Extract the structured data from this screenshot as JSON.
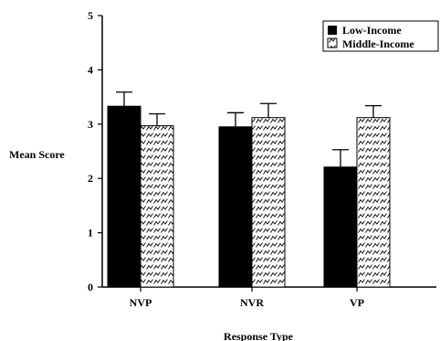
{
  "chart_data": {
    "type": "bar",
    "xlabel": "Response Type",
    "ylabel": "Mean Score",
    "ylim": [
      0,
      5
    ],
    "yticks": [
      "0",
      "1",
      "2",
      "3",
      "4",
      "5"
    ],
    "categories": [
      "NVP",
      "NVR",
      "VP"
    ],
    "series": [
      {
        "name": "Low-Income",
        "values": [
          3.33,
          2.95,
          2.21
        ],
        "errors": [
          0.26,
          0.26,
          0.32
        ],
        "fill": "#000000",
        "pattern": "solid"
      },
      {
        "name": "Middle-Income",
        "values": [
          2.97,
          3.12,
          3.12
        ],
        "errors": [
          0.22,
          0.26,
          0.22
        ],
        "fill": "#ffffff",
        "pattern": "zigzag-hatch"
      }
    ],
    "grid": false,
    "legend_position": "top-right"
  }
}
